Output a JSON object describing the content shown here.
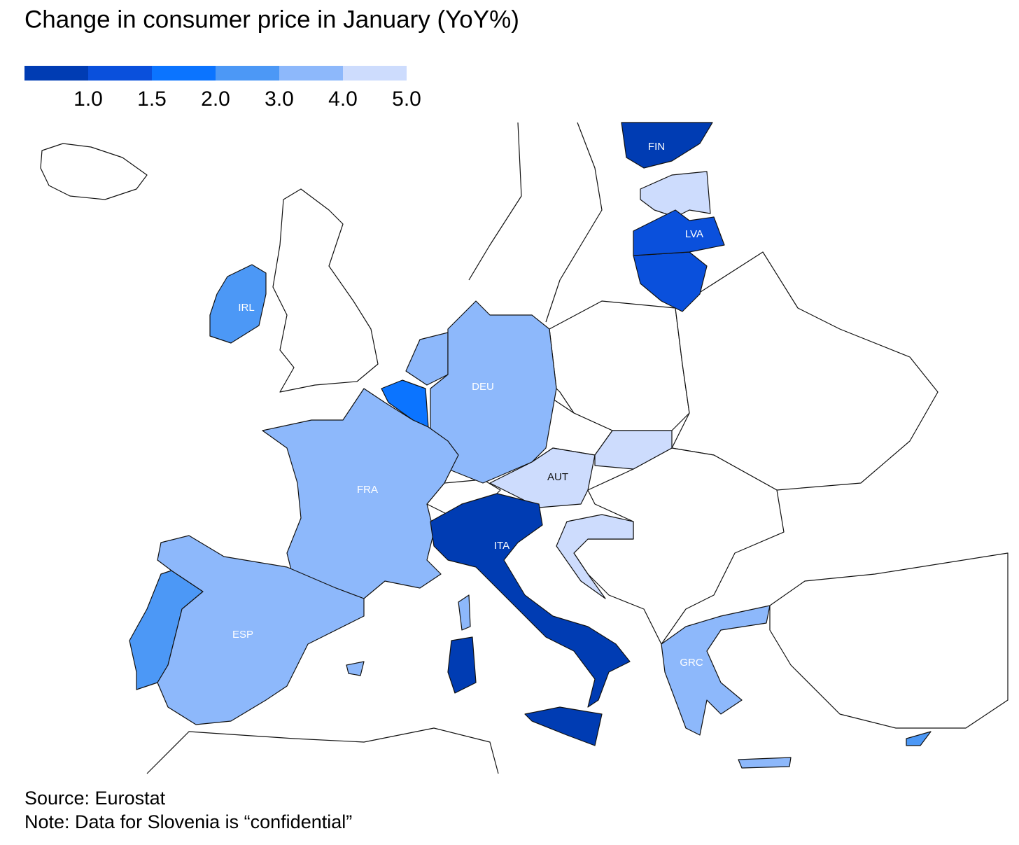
{
  "chart_data": {
    "type": "choropleth",
    "title": "Change in consumer price in January (YoY%)",
    "legend": {
      "colors": [
        "#003cb3",
        "#0a50dc",
        "#0b74ff",
        "#4c98f6",
        "#8db8fb",
        "#cddcfd"
      ],
      "ticks": [
        {
          "value": 1,
          "label": "1.0"
        },
        {
          "value": 1.5,
          "label": "1.5"
        },
        {
          "value": 2,
          "label": "2.0"
        },
        {
          "value": 3,
          "label": "3.0"
        },
        {
          "value": 4,
          "label": "4.0"
        },
        {
          "value": 5,
          "label": "5.0"
        }
      ]
    },
    "countries": [
      {
        "label": "FIN",
        "color": "#003cb3"
      },
      {
        "label": "LVA",
        "color": "#0a50dc"
      },
      {
        "label": "IRL",
        "color": "#4c98f6"
      },
      {
        "label": "DEU",
        "color": "#8db8fb"
      },
      {
        "label": "FRA",
        "color": "#8db8fb"
      },
      {
        "label": "AUT",
        "color": "#cddcfd"
      },
      {
        "label": "ITA",
        "color": "#003cb3"
      },
      {
        "label": "ESP",
        "color": "#8db8fb"
      },
      {
        "label": "GRC",
        "color": "#8db8fb"
      }
    ],
    "notes": [
      "Source: Eurostat",
      "Note: Data for Slovenia is “confidential”"
    ]
  }
}
